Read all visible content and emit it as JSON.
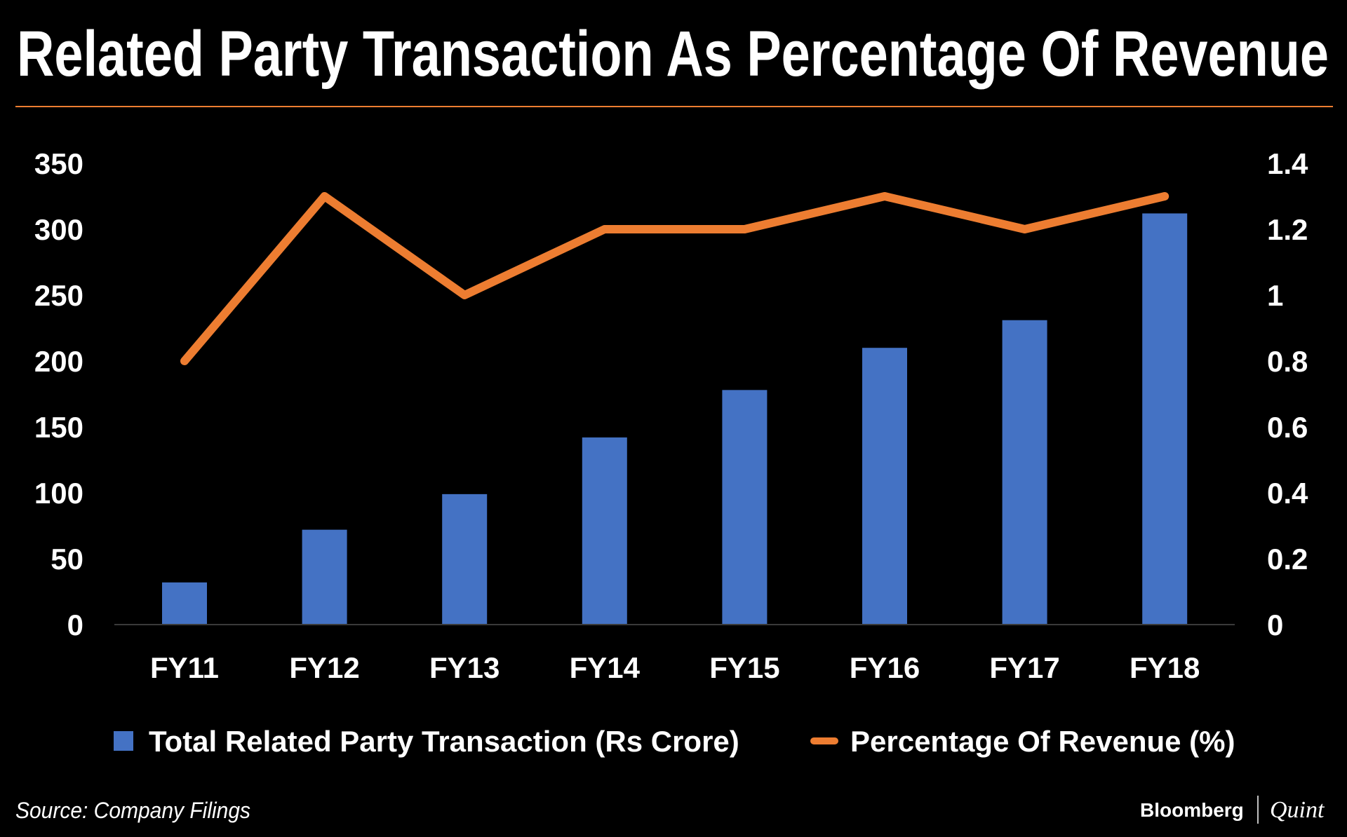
{
  "chart_data": {
    "type": "bar+line",
    "title": "Related Party Transaction As Percentage Of Revenue",
    "categories": [
      "FY11",
      "FY12",
      "FY13",
      "FY14",
      "FY15",
      "FY16",
      "FY17",
      "FY18"
    ],
    "series": [
      {
        "name": "Total Related Party Transaction (Rs Crore)",
        "type": "bar",
        "axis": "left",
        "color": "#4472C4",
        "values": [
          32,
          72,
          99,
          142,
          178,
          210,
          231,
          312
        ]
      },
      {
        "name": "Percentage Of Revenue (%)",
        "type": "line",
        "axis": "right",
        "color": "#ED7D31",
        "values": [
          0.8,
          1.3,
          1.0,
          1.2,
          1.2,
          1.3,
          1.2,
          1.3
        ]
      }
    ],
    "y_left": {
      "range": [
        0,
        350
      ],
      "ticks": [
        "0",
        "50",
        "100",
        "150",
        "200",
        "250",
        "300",
        "350"
      ]
    },
    "y_right": {
      "range": [
        0,
        1.4
      ],
      "ticks": [
        "0",
        "0.2",
        "0.4",
        "0.6",
        "0.8",
        "1",
        "1.2",
        "1.4"
      ]
    },
    "grid": false,
    "legend_position": "bottom"
  },
  "source": "Source: Company Filings",
  "branding": {
    "logo_left": "Bloomberg",
    "logo_right": "Quint"
  },
  "colors": {
    "background": "#000000",
    "rule": "#ED7D31"
  }
}
